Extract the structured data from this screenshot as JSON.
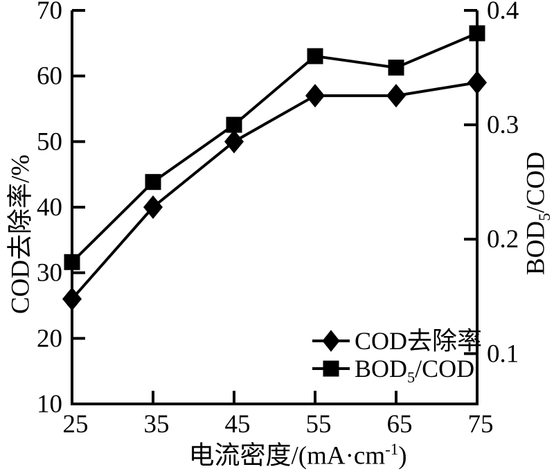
{
  "chart_data": {
    "type": "line",
    "title": "",
    "x": [
      25,
      35,
      45,
      55,
      65,
      75
    ],
    "series": [
      {
        "name": "COD去除率",
        "axis": "left",
        "marker": "diamond",
        "color": "#000000",
        "values": [
          26,
          40,
          50,
          57,
          57,
          59
        ]
      },
      {
        "name": "BOD5/COD",
        "axis": "right",
        "marker": "square",
        "color": "#000000",
        "values": [
          0.18,
          0.25,
          0.3,
          0.36,
          0.35,
          0.38
        ]
      }
    ],
    "x_axis": {
      "label_main": "电流密度/(mA·cm",
      "label_sup": "-1",
      "label_close": ")",
      "tick_values": [
        25,
        35,
        45,
        55,
        65,
        75
      ],
      "tick_labels": [
        "25",
        "35",
        "45",
        "55",
        "65",
        "75"
      ],
      "range": [
        25,
        75
      ]
    },
    "left_axis": {
      "label": "COD去除率/%",
      "tick_values": [
        10,
        20,
        30,
        40,
        50,
        60,
        70
      ],
      "tick_labels": [
        "10",
        "20",
        "30",
        "40",
        "50",
        "60",
        "70"
      ],
      "range": [
        10,
        70
      ]
    },
    "right_axis": {
      "label_main": "BOD",
      "label_sub": "5",
      "label_close": "/COD",
      "tick_values": [
        0.1,
        0.2,
        0.3,
        0.4
      ],
      "tick_labels": [
        "0.1",
        "0.2",
        "0.3",
        "0.4"
      ],
      "range": [
        0.056,
        0.4
      ]
    },
    "legend": {
      "position": "lower-right",
      "entries": [
        {
          "label_pre": "COD去除率",
          "label_sub": "",
          "label_post": "",
          "marker": "diamond"
        },
        {
          "label_pre": "BOD",
          "label_sub": "5",
          "label_post": "/COD",
          "marker": "square"
        }
      ]
    },
    "style": {
      "line_color": "#000000",
      "background": "#ffffff",
      "grid": false,
      "legend_frame": false
    }
  }
}
